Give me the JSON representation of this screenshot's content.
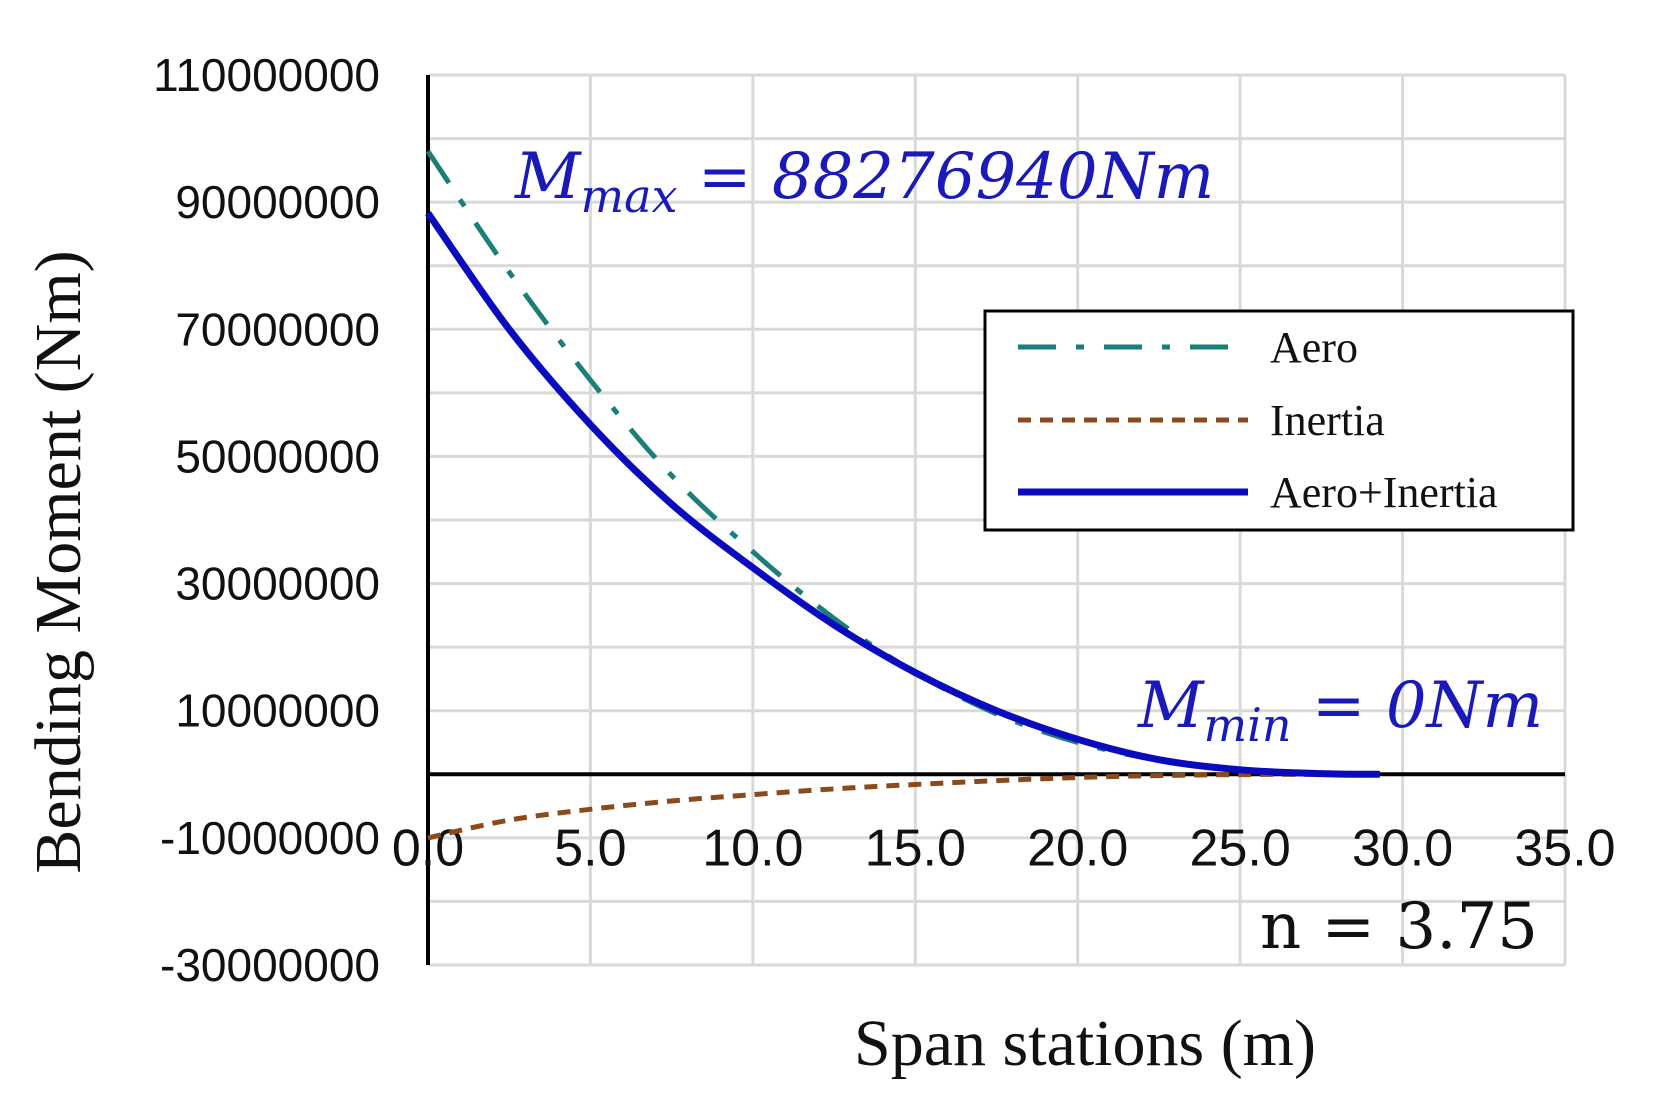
{
  "chart_data": {
    "type": "line",
    "xlabel": "Span stations (m)",
    "ylabel": "Bending Moment (Nm)",
    "xlim": [
      0,
      35
    ],
    "ylim": [
      -30000000,
      110000000
    ],
    "x_ticks": [
      "0.0",
      "5.0",
      "10.0",
      "15.0",
      "20.0",
      "25.0",
      "30.0",
      "35.0"
    ],
    "y_ticks": [
      "110000000",
      "90000000",
      "70000000",
      "50000000",
      "30000000",
      "10000000",
      "-10000000",
      "-30000000"
    ],
    "grid": true,
    "legend_position": "right",
    "series": [
      {
        "name": "Aero",
        "color": "#1a8077",
        "dash": "long-dash-dot",
        "x": [
          0,
          2.5,
          5,
          7.5,
          10,
          12.5,
          15,
          17.5,
          20,
          22.5,
          25,
          27.5,
          29.3
        ],
        "y": [
          98000000,
          79000000,
          62000000,
          47000000,
          35000000,
          24500000,
          16000000,
          9500000,
          5000000,
          2200000,
          700000,
          100000,
          0
        ]
      },
      {
        "name": "Inertia",
        "color": "#8b4a1c",
        "dash": "short-dash",
        "x": [
          0,
          2.5,
          5,
          7.5,
          10,
          12.5,
          15,
          17.5,
          20,
          22.5,
          25,
          27.5,
          29.3
        ],
        "y": [
          -10000000,
          -7200000,
          -5500000,
          -4200000,
          -3200000,
          -2300000,
          -1600000,
          -1000000,
          -500000,
          -200000,
          -50000,
          0,
          0
        ]
      },
      {
        "name": "Aero+Inertia",
        "color": "#0a0abf",
        "dash": "solid",
        "x": [
          0,
          2.5,
          5,
          7.5,
          10,
          12.5,
          15,
          17.5,
          20,
          22.5,
          25,
          27.5,
          29.3
        ],
        "y": [
          88276940,
          70000000,
          55000000,
          42500000,
          32500000,
          23500000,
          16000000,
          10000000,
          5500000,
          2300000,
          700000,
          100000,
          0
        ]
      }
    ],
    "annotations": {
      "max_label": "M",
      "max_sub": "max",
      "max_value": " = 88276940Nm",
      "min_label": "M",
      "min_sub": "min",
      "min_value": " = 0Nm",
      "load_factor": "n = 3.75"
    }
  }
}
